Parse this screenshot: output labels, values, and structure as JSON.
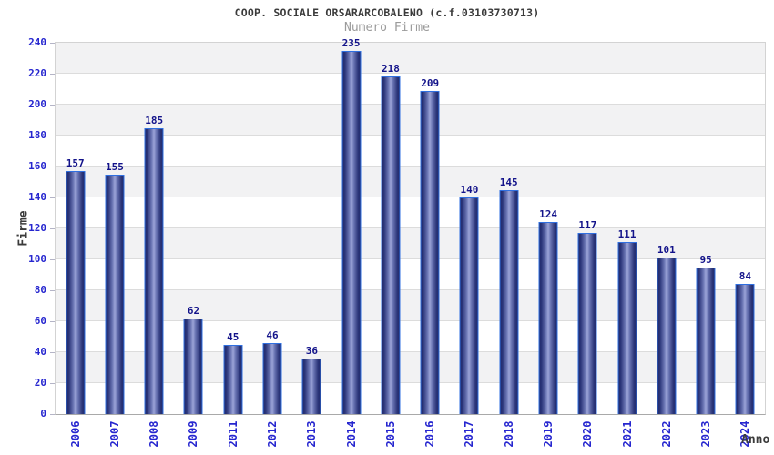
{
  "header": {
    "title": "COOP. SOCIALE ORSARARCOBALENO (c.f.03103730713)",
    "subtitle": "Numero Firme"
  },
  "chart_data": {
    "type": "bar",
    "title": "COOP. SOCIALE ORSARARCOBALENO (c.f.03103730713)",
    "subtitle": "Numero Firme",
    "xlabel": "Anno",
    "ylabel": "Firme",
    "categories": [
      "2006",
      "2007",
      "2008",
      "2009",
      "2011",
      "2012",
      "2013",
      "2014",
      "2015",
      "2016",
      "2017",
      "2018",
      "2019",
      "2020",
      "2021",
      "2022",
      "2023",
      "2024"
    ],
    "values": [
      157,
      155,
      185,
      62,
      45,
      46,
      36,
      235,
      218,
      209,
      140,
      145,
      124,
      117,
      111,
      101,
      95,
      84
    ],
    "ylim": [
      0,
      240
    ],
    "ytick_step": 20,
    "yticks": [
      0,
      20,
      40,
      60,
      80,
      100,
      120,
      140,
      160,
      180,
      200,
      220,
      240
    ],
    "grid": "horizontal",
    "legend": "none",
    "colors": {
      "bar_edge_dark": "#222b6d",
      "bar_center_light": "#9ba4d8",
      "bar_outline": "#2f6fe0",
      "tick_label_blue": "#2626cf",
      "value_label_navy": "#13138a",
      "band_gray": "#f2f2f3",
      "band_white": "#ffffff",
      "gridline": "#dcdcdc",
      "plot_border": "#d3d3d3",
      "axis_line": "#a9a9a9",
      "title_color": "#3b3b3b",
      "subtitle_color": "#9b9b9b"
    }
  }
}
